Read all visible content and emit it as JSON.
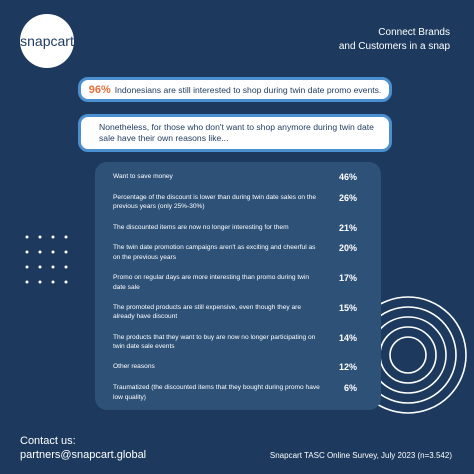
{
  "header": {
    "logo": "snapcart",
    "tagline": [
      "Connect Brands",
      "and Customers in a snap"
    ]
  },
  "highlight": {
    "stat": "96%",
    "text": "Indonesians are still interested to shop during twin date promo events."
  },
  "note": "Nonetheless, for those who don't want to shop anymore during twin date sale have their own reasons like...",
  "reasons": [
    {
      "label": "Want to save money",
      "value": "46%"
    },
    {
      "label": "Percentage of the discount is lower than during twin date sales on the previous years (only 25%-30%)",
      "value": "26%"
    },
    {
      "label": "The discounted items are now no longer interesting for them",
      "value": "21%"
    },
    {
      "label": "The twin date promotion campaigns aren't as exciting and cheerful as on the previous years",
      "value": "20%"
    },
    {
      "label": "Promo on regular days are more interesting than promo during twin date sale",
      "value": "17%"
    },
    {
      "label": "The promoted products are still expensive, even though they are already have discount",
      "value": "15%"
    },
    {
      "label": "The products that they want to buy are now no longer participating on twin date sale events",
      "value": "14%"
    },
    {
      "label": "Other reasons",
      "value": "12%"
    },
    {
      "label": "Traumatized (the discounted items that they bought during promo have low quality)",
      "value": "6%"
    }
  ],
  "footer": {
    "contact_title": "Contact us:",
    "contact": "partners@snapcart.global",
    "source": "Snapcart TASC Online Survey, July 2023 (n=3.542)"
  }
}
